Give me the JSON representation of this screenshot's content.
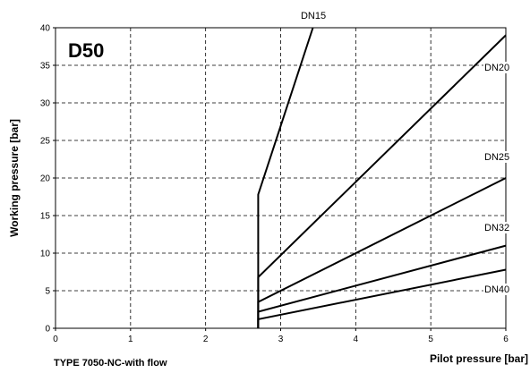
{
  "chart_data": {
    "type": "line",
    "title": "D50",
    "footer": "TYPE 7050-NC-with flow",
    "xlabel": "Pilot pressure [bar]",
    "ylabel": "Working pressure [bar]",
    "xlim": [
      0,
      6
    ],
    "ylim": [
      0,
      40
    ],
    "xticks": [
      0,
      1,
      2,
      3,
      4,
      5,
      6
    ],
    "yticks": [
      0,
      5,
      10,
      15,
      20,
      25,
      30,
      35,
      40
    ],
    "grid": "dashed",
    "series": [
      {
        "name": "DN15",
        "points": [
          [
            2.7,
            0
          ],
          [
            2.7,
            17.8
          ],
          [
            3.43,
            40
          ]
        ]
      },
      {
        "name": "DN20",
        "points": [
          [
            2.7,
            0
          ],
          [
            2.7,
            6.8
          ],
          [
            6,
            39
          ]
        ]
      },
      {
        "name": "DN25",
        "points": [
          [
            2.7,
            0
          ],
          [
            2.7,
            3.5
          ],
          [
            6,
            20
          ]
        ]
      },
      {
        "name": "DN32",
        "points": [
          [
            2.7,
            0
          ],
          [
            2.7,
            2.2
          ],
          [
            6,
            11
          ]
        ]
      },
      {
        "name": "DN40",
        "points": [
          [
            2.7,
            0
          ],
          [
            2.7,
            1.2
          ],
          [
            6,
            7.8
          ]
        ]
      }
    ]
  }
}
